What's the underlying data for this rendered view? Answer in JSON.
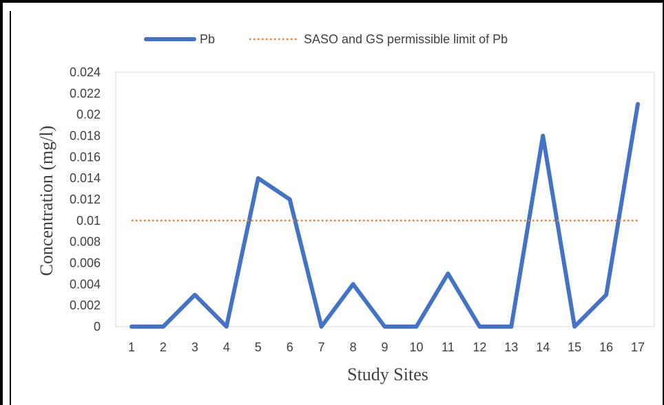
{
  "chart_data": {
    "type": "line",
    "categories": [
      "1",
      "2",
      "3",
      "4",
      "5",
      "6",
      "7",
      "8",
      "9",
      "10",
      "11",
      "12",
      "13",
      "14",
      "15",
      "16",
      "17"
    ],
    "series": [
      {
        "name": "Pb",
        "color": "#4472C4",
        "style": "solid",
        "values": [
          0,
          0,
          0.003,
          0,
          0.014,
          0.012,
          0,
          0.004,
          0,
          0,
          0.005,
          0,
          0,
          0.018,
          0,
          0.003,
          0.021
        ]
      },
      {
        "name": "SASO and GS permissible limit of Pb",
        "color": "#ED7D31",
        "style": "dotted",
        "values": [
          0.01,
          0.01,
          0.01,
          0.01,
          0.01,
          0.01,
          0.01,
          0.01,
          0.01,
          0.01,
          0.01,
          0.01,
          0.01,
          0.01,
          0.01,
          0.01,
          0.01
        ]
      }
    ],
    "yticks": [
      "0",
      "0.002",
      "0.004",
      "0.006",
      "0.008",
      "0.01",
      "0.012",
      "0.014",
      "0.016",
      "0.018",
      "0.02",
      "0.022",
      "0.024"
    ],
    "ylim": [
      0,
      0.024
    ],
    "xlabel": "Study Sites",
    "ylabel": "Concentration (mg/l)",
    "legend_position": "top",
    "grid": false
  }
}
